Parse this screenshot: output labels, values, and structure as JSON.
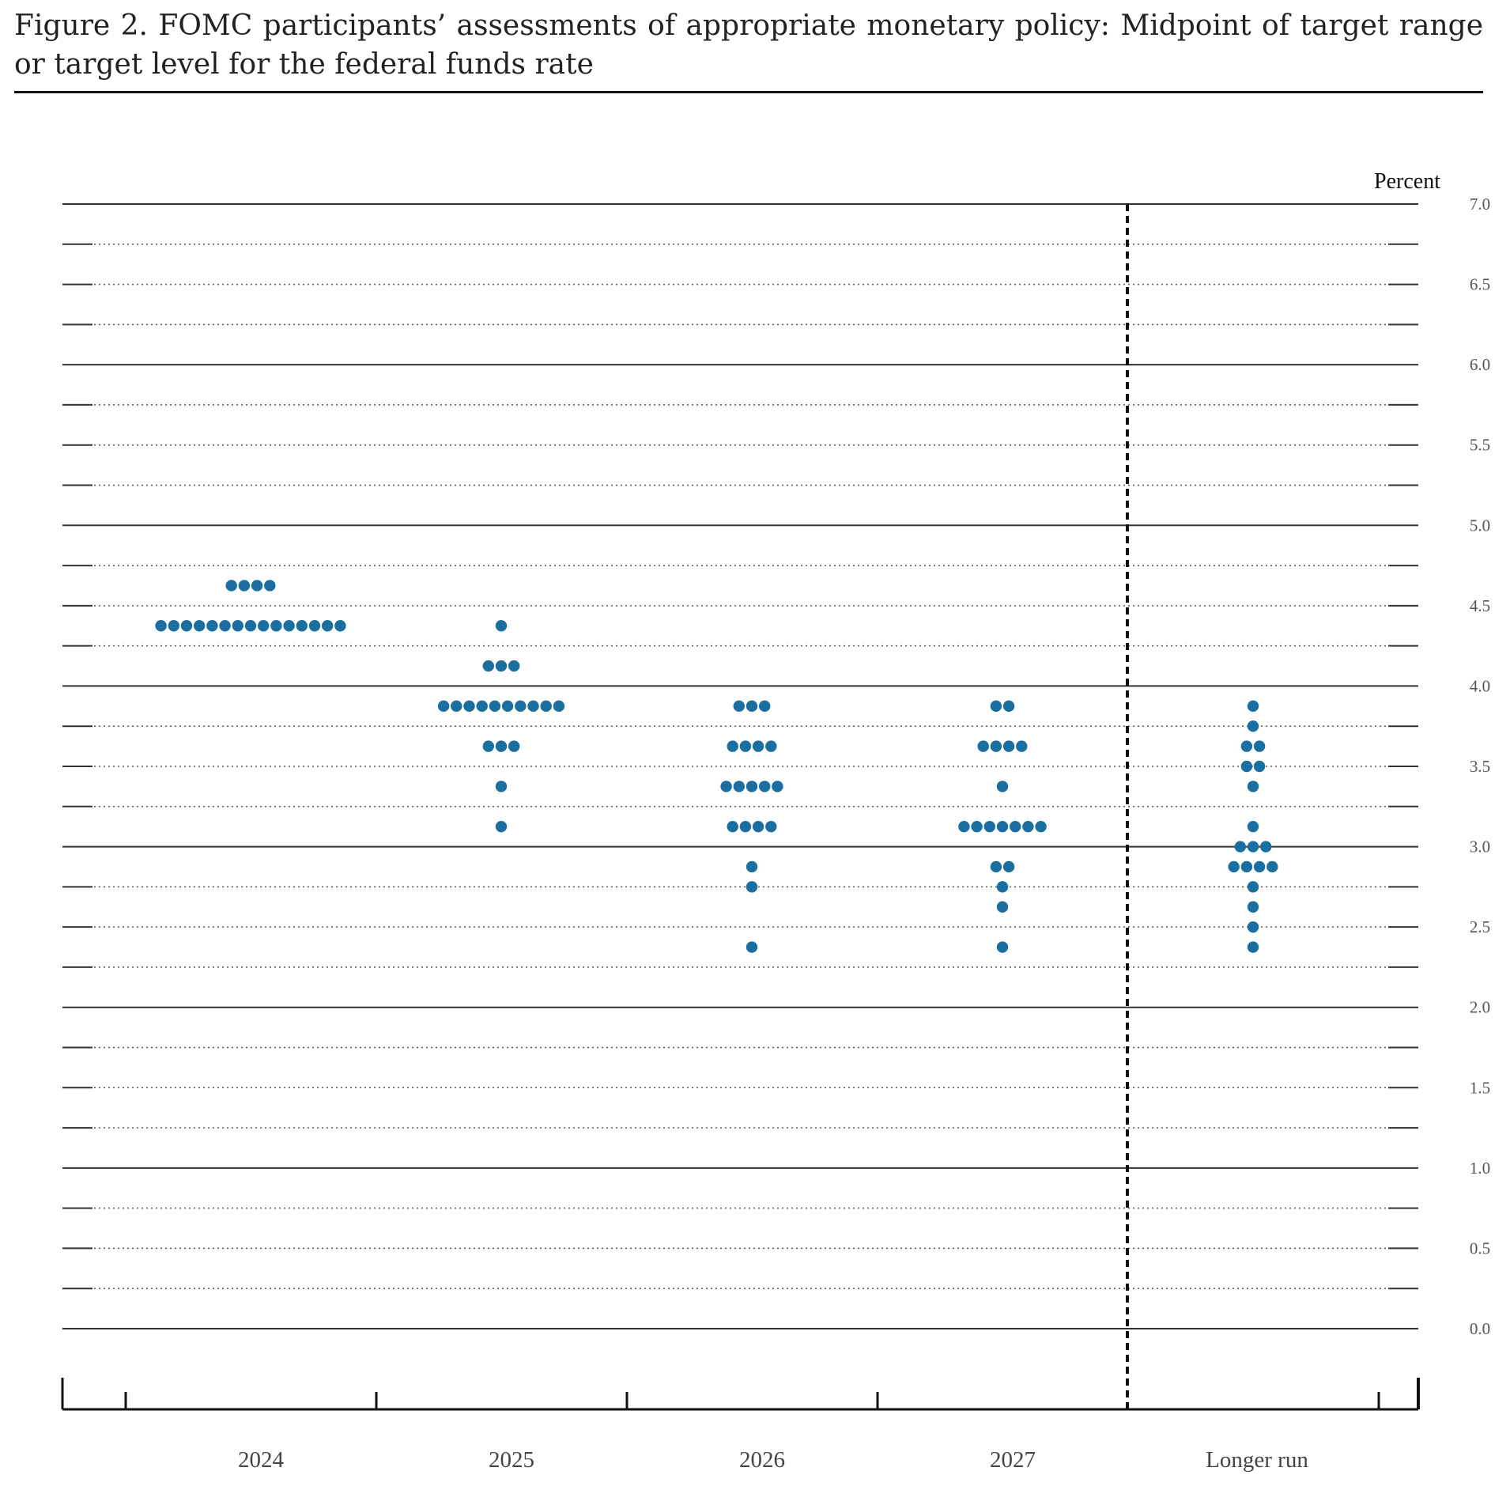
{
  "title": "Figure 2.  FOMC participants’ assessments of appropriate monetary policy:  Midpoint of target range or target level for the federal funds rate",
  "chart_data": {
    "type": "scatter",
    "title": "Figure 2.  FOMC participants’ assessments of appropriate monetary policy:  Midpoint of target range or target level for the federal funds rate",
    "ylabel": "Percent",
    "ylim": [
      0.0,
      7.0
    ],
    "yticks": [
      "0.0",
      "0.5",
      "1.0",
      "1.5",
      "2.0",
      "2.5",
      "3.0",
      "3.5",
      "4.0",
      "4.5",
      "5.0",
      "5.5",
      "6.0",
      "6.5",
      "7.0"
    ],
    "categories": [
      "2024",
      "2025",
      "2026",
      "2027",
      "Longer run"
    ],
    "dot_color": "#1a6fa0",
    "columns": [
      {
        "category": "2024",
        "dots": [
          {
            "rate": 4.625,
            "count": 4
          },
          {
            "rate": 4.375,
            "count": 15
          }
        ]
      },
      {
        "category": "2025",
        "dots": [
          {
            "rate": 4.375,
            "count": 1
          },
          {
            "rate": 4.125,
            "count": 3
          },
          {
            "rate": 3.875,
            "count": 10
          },
          {
            "rate": 3.625,
            "count": 3
          },
          {
            "rate": 3.375,
            "count": 1
          },
          {
            "rate": 3.125,
            "count": 1
          }
        ]
      },
      {
        "category": "2026",
        "dots": [
          {
            "rate": 3.875,
            "count": 3
          },
          {
            "rate": 3.625,
            "count": 4
          },
          {
            "rate": 3.375,
            "count": 5
          },
          {
            "rate": 3.125,
            "count": 4
          },
          {
            "rate": 2.875,
            "count": 1
          },
          {
            "rate": 2.75,
            "count": 1
          },
          {
            "rate": 2.375,
            "count": 1
          }
        ]
      },
      {
        "category": "2027",
        "dots": [
          {
            "rate": 3.875,
            "count": 2
          },
          {
            "rate": 3.625,
            "count": 4
          },
          {
            "rate": 3.375,
            "count": 1
          },
          {
            "rate": 3.125,
            "count": 7
          },
          {
            "rate": 2.875,
            "count": 2
          },
          {
            "rate": 2.75,
            "count": 1
          },
          {
            "rate": 2.625,
            "count": 1
          },
          {
            "rate": 2.375,
            "count": 1
          }
        ]
      },
      {
        "category": "Longer run",
        "dots": [
          {
            "rate": 3.875,
            "count": 1
          },
          {
            "rate": 3.75,
            "count": 1
          },
          {
            "rate": 3.625,
            "count": 2
          },
          {
            "rate": 3.5,
            "count": 2
          },
          {
            "rate": 3.375,
            "count": 1
          },
          {
            "rate": 3.125,
            "count": 1
          },
          {
            "rate": 3.0,
            "count": 3
          },
          {
            "rate": 2.875,
            "count": 4
          },
          {
            "rate": 2.75,
            "count": 1
          },
          {
            "rate": 2.625,
            "count": 1
          },
          {
            "rate": 2.5,
            "count": 1
          },
          {
            "rate": 2.375,
            "count": 1
          }
        ]
      }
    ]
  }
}
